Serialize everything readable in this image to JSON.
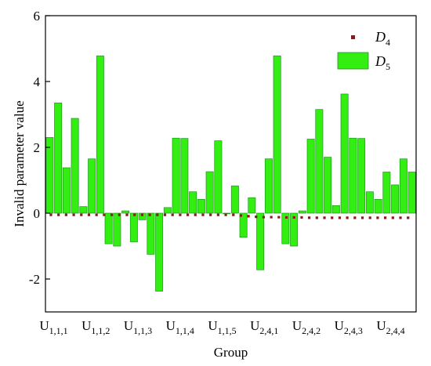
{
  "chart_data": {
    "type": "bar",
    "xlabel": "Group",
    "ylabel": "Invalid parameter value",
    "ylim": [
      -3,
      6
    ],
    "yticks": [
      -2,
      0,
      2,
      4,
      6
    ],
    "grid": false,
    "legend_position": "top-right",
    "x_tick_labels": [
      {
        "base": "U",
        "sub": "1,1,1",
        "bar_index": 0
      },
      {
        "base": "U",
        "sub": "1,1,2",
        "bar_index": 5
      },
      {
        "base": "U",
        "sub": "1,1,3",
        "bar_index": 10
      },
      {
        "base": "U",
        "sub": "1,1,4",
        "bar_index": 15
      },
      {
        "base": "U",
        "sub": "1,1,5",
        "bar_index": 20
      },
      {
        "base": "U",
        "sub": "2,4,1",
        "bar_index": 25
      },
      {
        "base": "U",
        "sub": "2,4,2",
        "bar_index": 30
      },
      {
        "base": "U",
        "sub": "2,4,3",
        "bar_index": 35
      },
      {
        "base": "U",
        "sub": "2,4,4",
        "bar_index": 40
      }
    ],
    "series": [
      {
        "name": "D5",
        "legend_base": "D",
        "legend_sub": "5",
        "kind": "bar",
        "color": "#33ee11",
        "edge_color": "#1a9a1a",
        "values": [
          2.3,
          3.35,
          1.38,
          2.88,
          0.2,
          1.65,
          4.78,
          -0.93,
          -1.0,
          0.07,
          -0.87,
          -0.2,
          -1.25,
          -2.37,
          0.17,
          2.28,
          2.27,
          0.65,
          0.42,
          1.26,
          2.2,
          -0.01,
          0.83,
          -0.73,
          0.47,
          -1.72,
          1.65,
          4.78,
          -0.93,
          -1.0,
          0.07,
          2.25,
          3.15,
          1.7,
          0.23,
          3.62,
          2.28,
          2.27,
          0.65,
          0.42,
          1.25,
          0.86,
          1.65,
          1.25
        ]
      },
      {
        "name": "D4",
        "legend_base": "D",
        "legend_sub": "4",
        "kind": "dotted-line",
        "color": "#8b1a1a",
        "values": [
          -0.05,
          -0.05,
          -0.05,
          -0.05,
          -0.05,
          -0.05,
          -0.05,
          -0.05,
          -0.05,
          -0.05,
          -0.05,
          -0.05,
          -0.05,
          -0.05,
          -0.05,
          -0.05,
          -0.05,
          -0.05,
          -0.05,
          -0.05,
          -0.05,
          -0.05,
          -0.05,
          -0.08,
          -0.1,
          -0.12,
          -0.12,
          -0.12,
          -0.13,
          -0.13,
          -0.13,
          -0.14,
          -0.14,
          -0.14,
          -0.14,
          -0.14,
          -0.14,
          -0.14,
          -0.14,
          -0.14,
          -0.14,
          -0.14,
          -0.14,
          -0.14
        ]
      }
    ]
  }
}
